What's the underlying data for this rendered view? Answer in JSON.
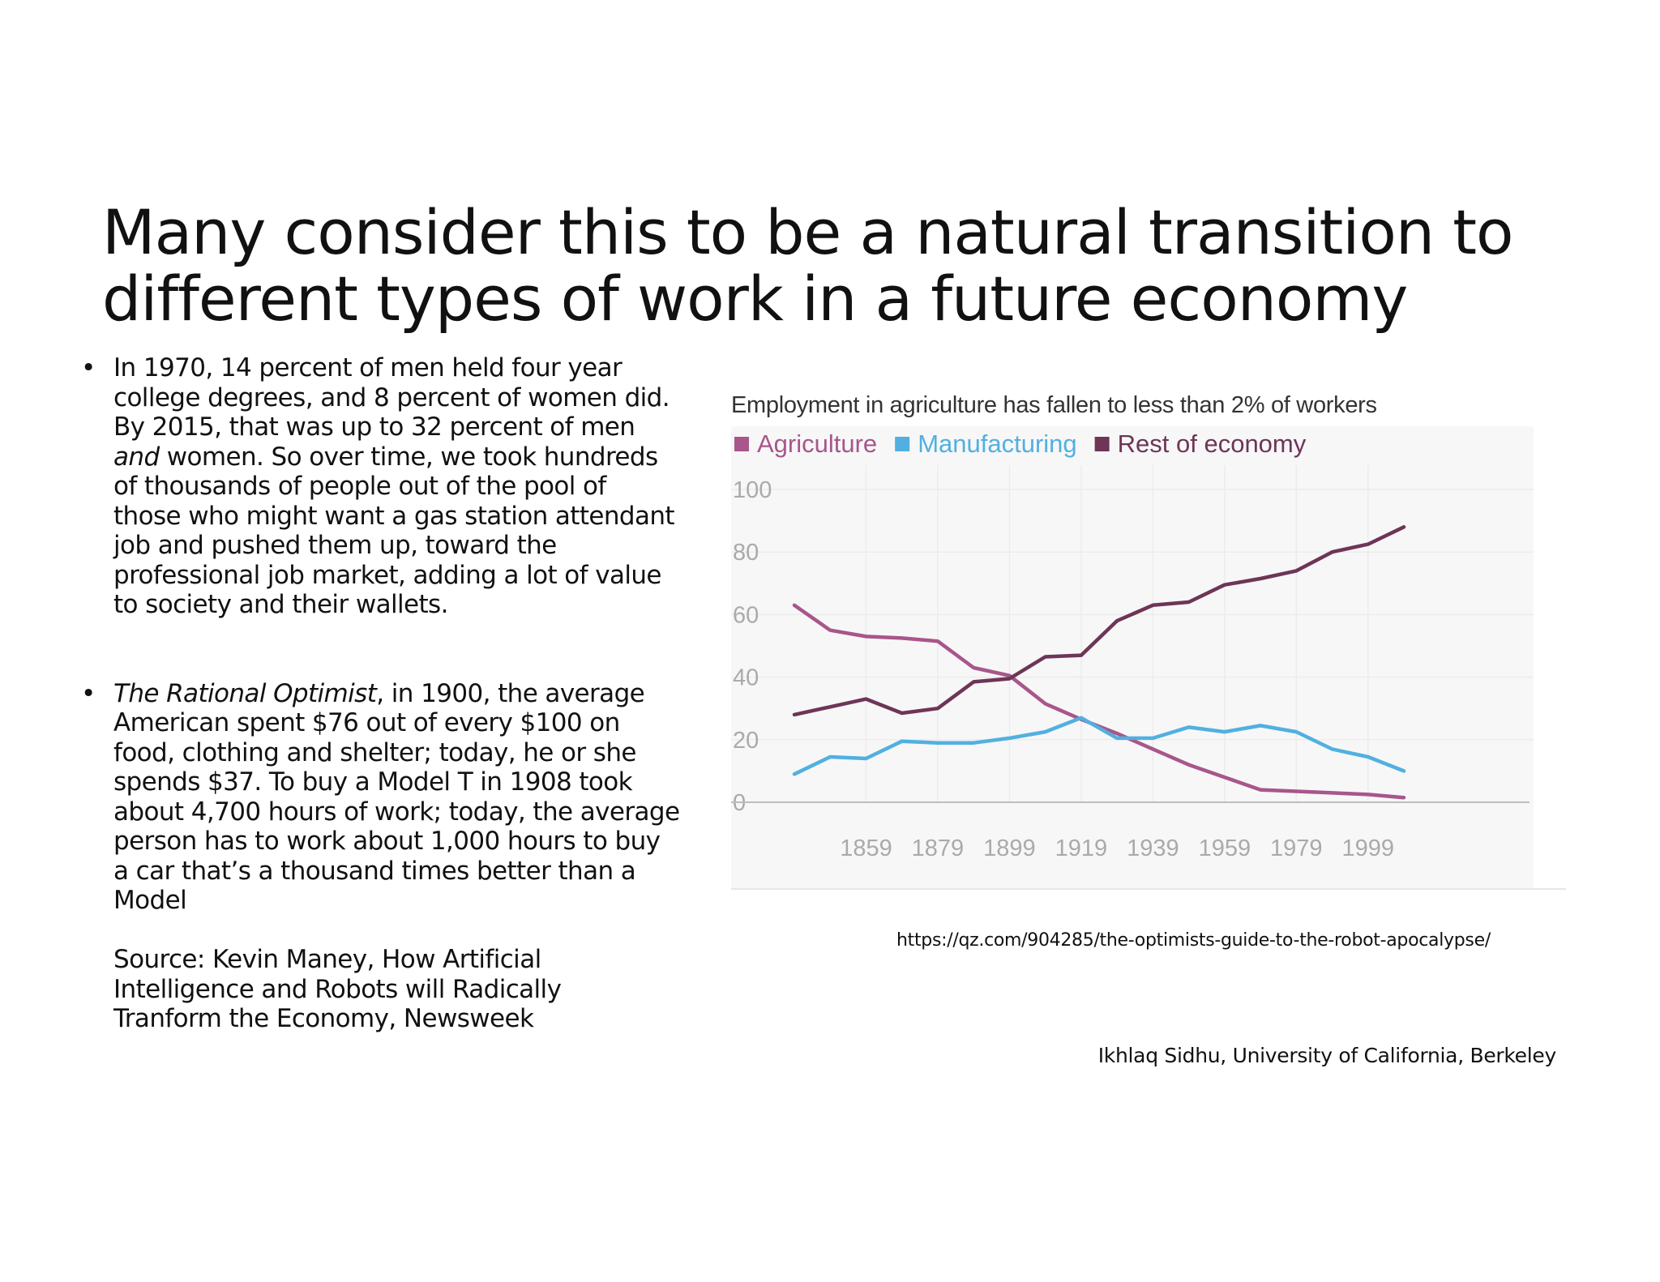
{
  "slide": {
    "title_line1": "Many consider this to be a natural transition to",
    "title_line2": "different types of work in a future economy"
  },
  "bullets": {
    "b1_line1": "In 1970, 14 percent of men held four year",
    "b1_line2": "college degrees, and 8 percent of women did.",
    "b1_line3": "By 2015, that was up to 32 percent of men",
    "b1_line4_em": "and",
    "b1_line4_rest": " women. So over time, we took hundreds",
    "b1_line5": "of thousands of people out of the pool of",
    "b1_line6": "those who might want a gas station attendant",
    "b1_line7": "job and pushed them up, toward the",
    "b1_line8": "professional job market, adding a lot of value",
    "b1_line9": "to society and their wallets.",
    "b2_line1_em": "The Rational Optimist",
    "b2_line1_rest": ", in 1900, the average",
    "b2_line2": "American spent $76 out of every $100 on",
    "b2_line3": "food, clothing and shelter; today, he or she",
    "b2_line4": "spends $37. To buy a Model T in 1908 took",
    "b2_line5": "about 4,700 hours of work; today, the average",
    "b2_line6": "person has to work about 1,000 hours to buy",
    "b2_line7": "a car that’s a thousand times better than a",
    "b2_line8": "Model"
  },
  "source": {
    "line1": "Source: Kevin Maney, How Artificial",
    "line2": "Intelligence and Robots will Radically",
    "line3": "Tranform the Economy, Newsweek"
  },
  "url": "https://qz.com/904285/the-optimists-guide-to-the-robot-apocalypse/",
  "credit": "Ikhlaq Sidhu, University of California, Berkeley",
  "colors": {
    "agriculture": "#a8568b",
    "manufacturing": "#51b0e0",
    "rest": "#6e3556",
    "grid": "#ececec",
    "tick": "#aaaaaa",
    "plot_bg": "#f7f7f8"
  },
  "chart_data": {
    "type": "line",
    "title": "Employment in agriculture has fallen to less than 2% of workers",
    "xlabel": "",
    "ylabel": "",
    "ylim": [
      0,
      100
    ],
    "yticks": [
      0,
      20,
      40,
      60,
      80,
      100
    ],
    "xticks": [
      1859,
      1879,
      1899,
      1919,
      1939,
      1959,
      1979,
      1999
    ],
    "x": [
      1839,
      1849,
      1859,
      1869,
      1879,
      1889,
      1899,
      1909,
      1919,
      1929,
      1939,
      1949,
      1959,
      1969,
      1979,
      1989,
      1999,
      2009
    ],
    "grid": true,
    "legend": "top-left",
    "series": [
      {
        "name": "Agriculture",
        "values": [
          63,
          55,
          53,
          52.5,
          51.5,
          43,
          40.5,
          31.5,
          26.5,
          22,
          17,
          12,
          8,
          4,
          3.5,
          3,
          2.5,
          1.5
        ]
      },
      {
        "name": "Manufacturing",
        "values": [
          9,
          14.5,
          14,
          19.5,
          19,
          19,
          20.5,
          22.5,
          27,
          20.5,
          20.5,
          24,
          22.5,
          24.5,
          22.5,
          17,
          14.5,
          10
        ]
      },
      {
        "name": "Rest of economy",
        "values": [
          28,
          30.5,
          33,
          28.5,
          30,
          38.5,
          39.5,
          46.5,
          47,
          58,
          63,
          64,
          69.5,
          71.5,
          74,
          80,
          82.5,
          88
        ]
      }
    ]
  }
}
